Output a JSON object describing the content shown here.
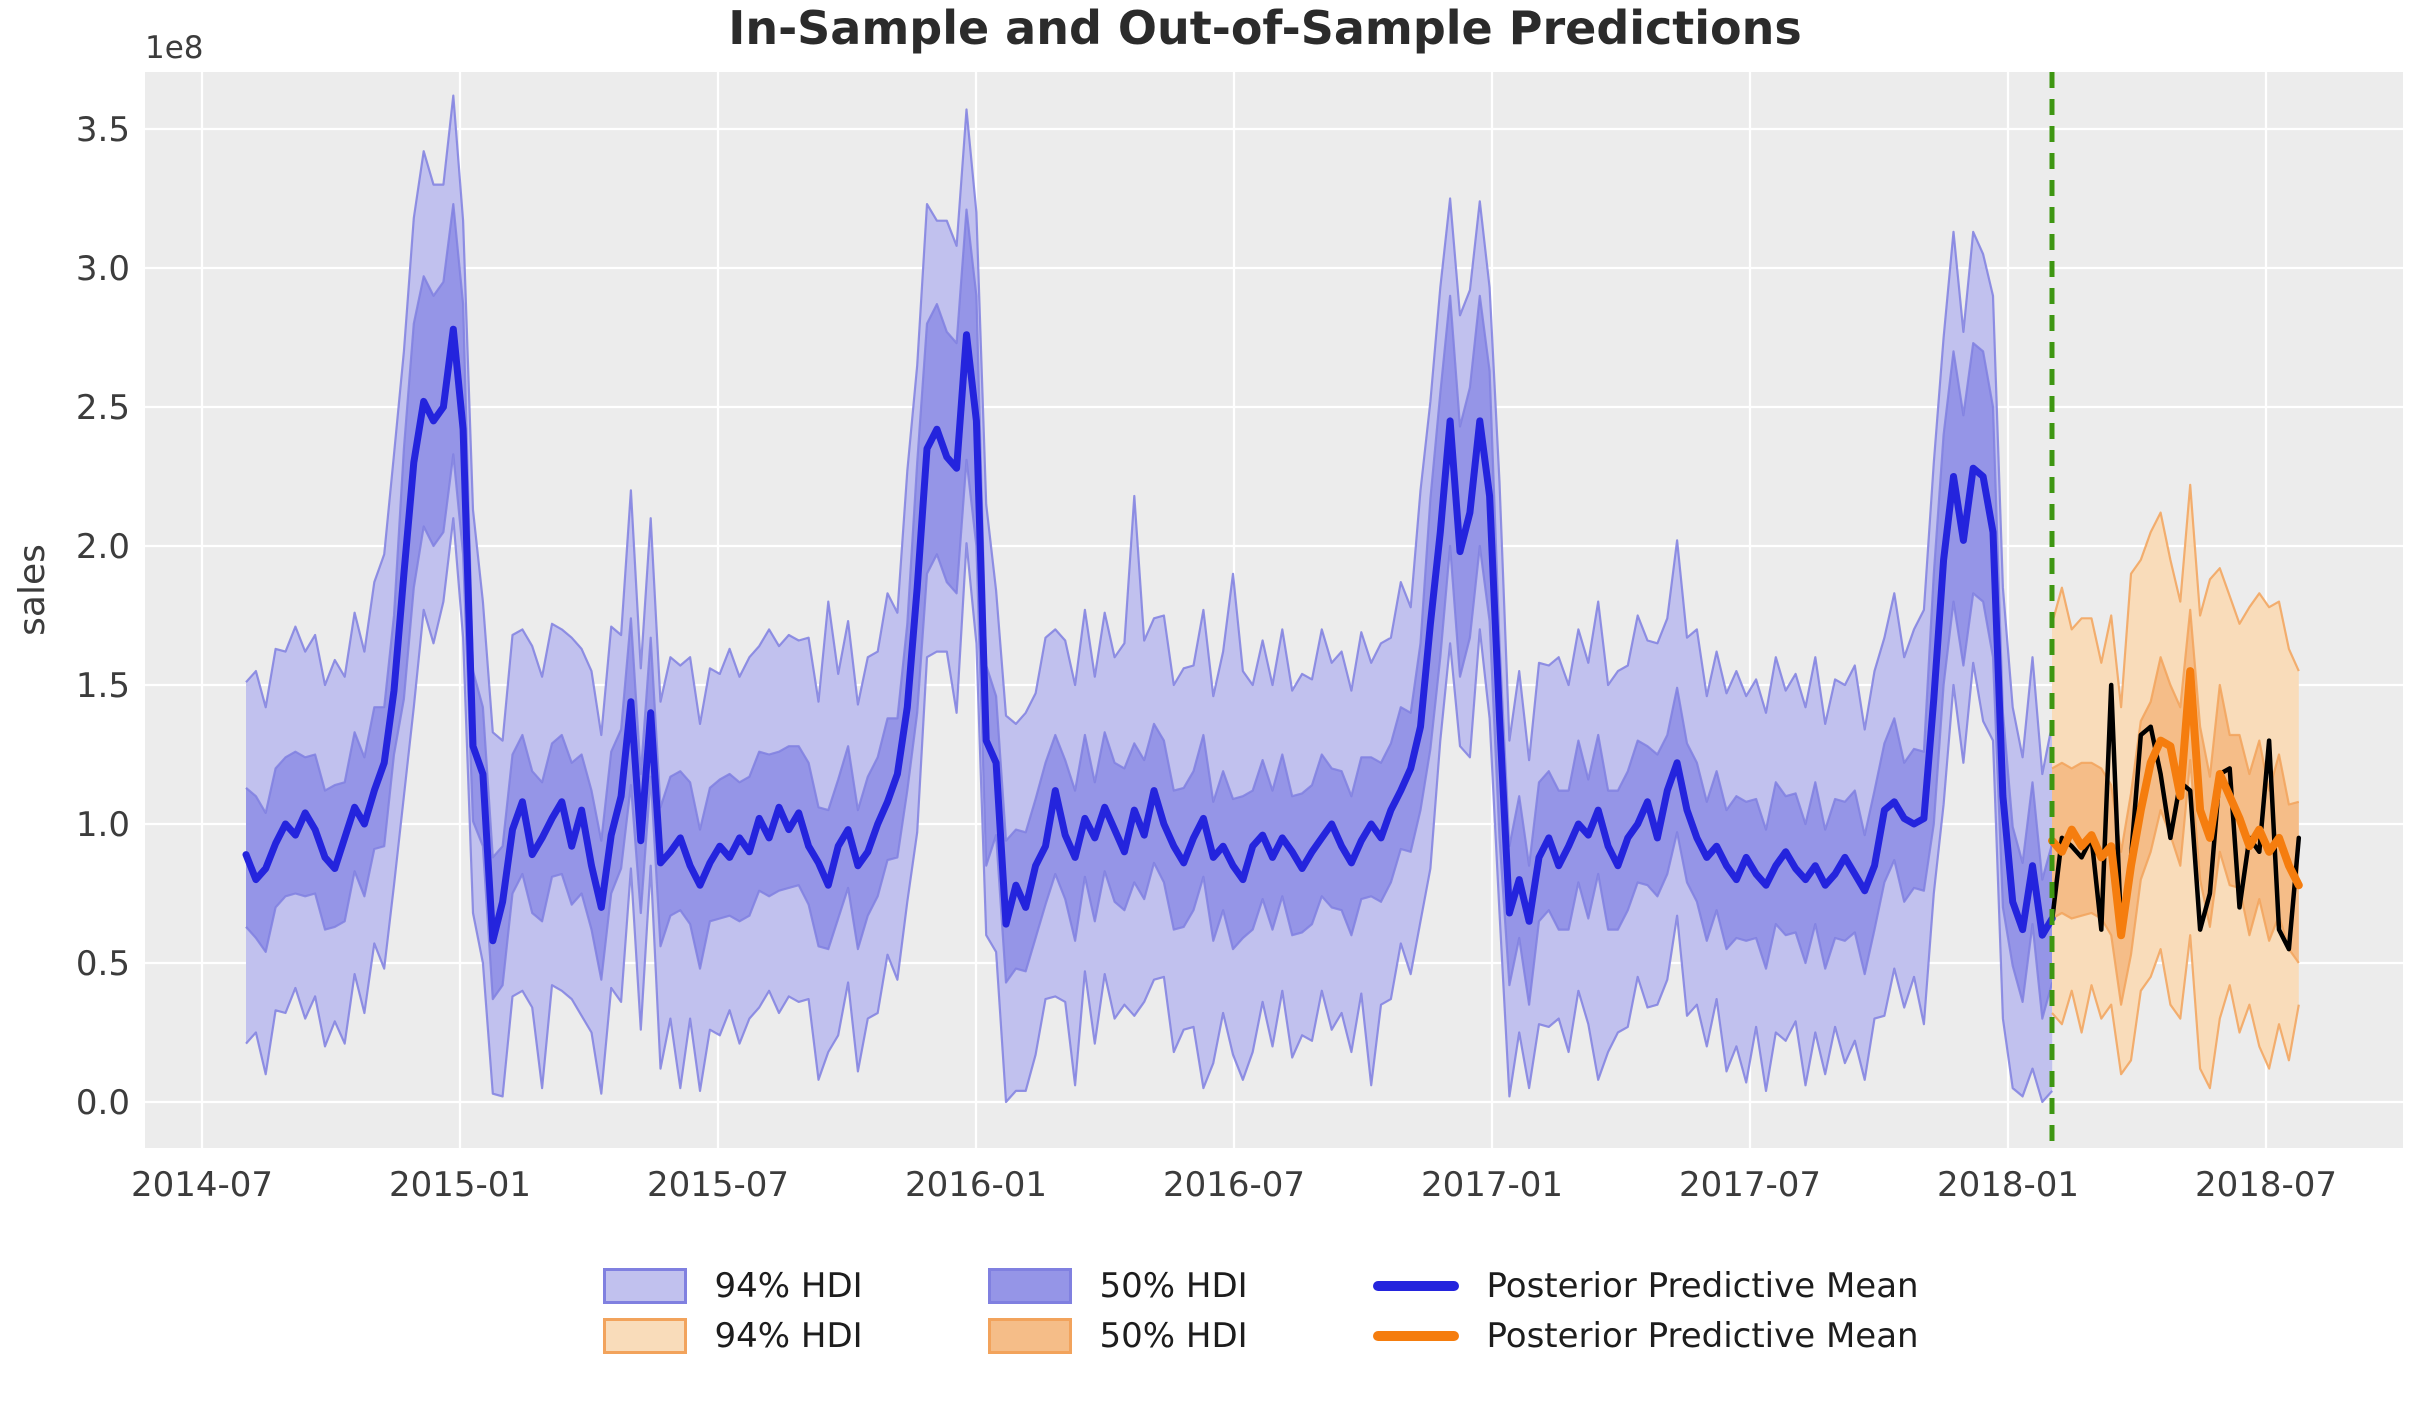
{
  "chart_data": {
    "type": "line",
    "title": "In-Sample and Out-of-Sample Predictions",
    "ylabel": "sales",
    "xlabel": "",
    "y_offset_label": "1e8",
    "unit": "1e8",
    "grid": true,
    "x_tick_labels": [
      "2014-07",
      "2015-01",
      "2015-07",
      "2016-01",
      "2016-07",
      "2017-01",
      "2017-07",
      "2018-01",
      "2018-07"
    ],
    "y_tick_labels": [
      "0.0",
      "0.5",
      "1.0",
      "1.5",
      "2.0",
      "2.5",
      "3.0",
      "3.5"
    ],
    "y_tick_values": [
      0,
      0.5,
      1.0,
      1.5,
      2.0,
      2.5,
      3.0,
      3.5
    ],
    "ylim": [
      -0.17,
      3.71
    ],
    "legend_position": "lower center below axes",
    "split_date": "2018-02-04",
    "series": {
      "in_sample": {
        "name": "Posterior Predictive Mean",
        "start_date": "2014-08-03",
        "freq_days": 7,
        "mean": [
          0.89,
          0.8,
          0.84,
          0.93,
          1.0,
          0.96,
          1.04,
          0.98,
          0.88,
          0.84,
          0.95,
          1.06,
          1.0,
          1.12,
          1.22,
          1.48,
          1.9,
          2.3,
          2.52,
          2.45,
          2.5,
          2.78,
          2.42,
          1.28,
          1.18,
          0.58,
          0.72,
          0.98,
          1.08,
          0.89,
          0.95,
          1.02,
          1.08,
          0.92,
          1.05,
          0.85,
          0.7,
          0.96,
          1.1,
          1.44,
          0.94,
          1.4,
          0.86,
          0.9,
          0.95,
          0.85,
          0.78,
          0.86,
          0.92,
          0.88,
          0.95,
          0.9,
          1.02,
          0.95,
          1.06,
          0.98,
          1.04,
          0.92,
          0.86,
          0.78,
          0.92,
          0.98,
          0.85,
          0.9,
          1.0,
          1.08,
          1.18,
          1.42,
          1.85,
          2.35,
          2.42,
          2.32,
          2.28,
          2.76,
          2.45,
          1.3,
          1.22,
          0.64,
          0.78,
          0.7,
          0.85,
          0.92,
          1.12,
          0.96,
          0.88,
          1.02,
          0.95,
          1.06,
          0.98,
          0.9,
          1.05,
          0.96,
          1.12,
          1.0,
          0.92,
          0.86,
          0.95,
          1.02,
          0.88,
          0.92,
          0.85,
          0.8,
          0.92,
          0.96,
          0.88,
          0.95,
          0.9,
          0.84,
          0.9,
          0.95,
          1.0,
          0.92,
          0.86,
          0.94,
          1.0,
          0.95,
          1.05,
          1.12,
          1.2,
          1.35,
          1.72,
          2.05,
          2.45,
          1.98,
          2.12,
          2.45,
          2.18,
          1.38,
          0.68,
          0.8,
          0.65,
          0.88,
          0.95,
          0.85,
          0.92,
          1.0,
          0.96,
          1.05,
          0.92,
          0.85,
          0.95,
          1.0,
          1.08,
          0.95,
          1.12,
          1.22,
          1.05,
          0.95,
          0.88,
          0.92,
          0.85,
          0.8,
          0.88,
          0.82,
          0.78,
          0.85,
          0.9,
          0.84,
          0.8,
          0.85,
          0.78,
          0.82,
          0.88,
          0.82,
          0.76,
          0.85,
          1.05,
          1.08,
          1.02,
          1.0,
          1.02,
          1.45,
          1.95,
          2.25,
          2.02,
          2.28,
          2.25,
          2.05,
          1.1,
          0.72,
          0.62,
          0.85,
          0.6,
          0.66
        ],
        "hdi94_hi": [
          1.51,
          1.55,
          1.42,
          1.63,
          1.62,
          1.71,
          1.62,
          1.68,
          1.5,
          1.59,
          1.53,
          1.76,
          1.62,
          1.87,
          1.97,
          2.33,
          2.7,
          3.18,
          3.42,
          3.3,
          3.3,
          3.62,
          3.17,
          2.13,
          1.8,
          1.33,
          1.3,
          1.68,
          1.7,
          1.64,
          1.53,
          1.72,
          1.7,
          1.67,
          1.63,
          1.55,
          1.32,
          1.71,
          1.68,
          2.2,
          1.56,
          2.1,
          1.44,
          1.6,
          1.57,
          1.6,
          1.36,
          1.56,
          1.54,
          1.63,
          1.53,
          1.6,
          1.64,
          1.7,
          1.64,
          1.68,
          1.66,
          1.67,
          1.44,
          1.8,
          1.54,
          1.73,
          1.43,
          1.6,
          1.62,
          1.83,
          1.76,
          2.27,
          2.65,
          3.23,
          3.17,
          3.17,
          3.08,
          3.57,
          3.2,
          2.15,
          1.84,
          1.39,
          1.36,
          1.4,
          1.47,
          1.67,
          1.7,
          1.66,
          1.5,
          1.77,
          1.53,
          1.76,
          1.6,
          1.65,
          2.18,
          1.66,
          1.74,
          1.75,
          1.5,
          1.56,
          1.57,
          1.77,
          1.46,
          1.62,
          1.9,
          1.55,
          1.5,
          1.66,
          1.5,
          1.7,
          1.48,
          1.54,
          1.52,
          1.7,
          1.58,
          1.62,
          1.48,
          1.69,
          1.58,
          1.65,
          1.67,
          1.87,
          1.78,
          2.2,
          2.52,
          2.93,
          3.25,
          2.83,
          2.92,
          3.24,
          2.93,
          2.23,
          1.3,
          1.55,
          1.23,
          1.58,
          1.57,
          1.6,
          1.5,
          1.7,
          1.58,
          1.8,
          1.5,
          1.55,
          1.57,
          1.75,
          1.66,
          1.65,
          1.74,
          2.02,
          1.67,
          1.7,
          1.46,
          1.62,
          1.47,
          1.55,
          1.46,
          1.52,
          1.4,
          1.6,
          1.48,
          1.54,
          1.42,
          1.6,
          1.36,
          1.52,
          1.5,
          1.57,
          1.34,
          1.55,
          1.67,
          1.83,
          1.6,
          1.7,
          1.77,
          2.3,
          2.75,
          3.13,
          2.77,
          3.13,
          3.05,
          2.9,
          1.85,
          1.42,
          1.24,
          1.6,
          1.18,
          1.36
        ],
        "hdi94_lo": [
          0.21,
          0.25,
          0.1,
          0.33,
          0.32,
          0.41,
          0.3,
          0.38,
          0.2,
          0.29,
          0.21,
          0.46,
          0.32,
          0.57,
          0.48,
          0.78,
          1.1,
          1.42,
          1.77,
          1.65,
          1.8,
          2.1,
          1.67,
          0.68,
          0.5,
          0.03,
          0.02,
          0.38,
          0.4,
          0.34,
          0.05,
          0.42,
          0.4,
          0.37,
          0.31,
          0.25,
          0.03,
          0.41,
          0.36,
          0.84,
          0.26,
          0.85,
          0.12,
          0.3,
          0.05,
          0.3,
          0.04,
          0.26,
          0.24,
          0.33,
          0.21,
          0.3,
          0.34,
          0.4,
          0.32,
          0.38,
          0.36,
          0.37,
          0.08,
          0.18,
          0.24,
          0.43,
          0.11,
          0.3,
          0.32,
          0.53,
          0.44,
          0.72,
          0.97,
          1.6,
          1.62,
          1.62,
          1.4,
          2.01,
          1.65,
          0.6,
          0.54,
          0.0,
          0.04,
          0.04,
          0.17,
          0.37,
          0.38,
          0.36,
          0.06,
          0.47,
          0.21,
          0.46,
          0.3,
          0.35,
          0.31,
          0.36,
          0.44,
          0.45,
          0.18,
          0.26,
          0.27,
          0.05,
          0.14,
          0.32,
          0.17,
          0.08,
          0.18,
          0.36,
          0.2,
          0.4,
          0.16,
          0.24,
          0.22,
          0.4,
          0.26,
          0.32,
          0.18,
          0.39,
          0.06,
          0.35,
          0.37,
          0.57,
          0.46,
          0.65,
          0.84,
          1.3,
          1.65,
          1.28,
          1.24,
          1.7,
          1.38,
          0.68,
          0.02,
          0.25,
          0.05,
          0.28,
          0.27,
          0.3,
          0.18,
          0.4,
          0.28,
          0.08,
          0.18,
          0.25,
          0.27,
          0.45,
          0.34,
          0.35,
          0.44,
          0.67,
          0.31,
          0.35,
          0.2,
          0.37,
          0.11,
          0.2,
          0.07,
          0.27,
          0.04,
          0.25,
          0.22,
          0.29,
          0.06,
          0.25,
          0.1,
          0.27,
          0.14,
          0.22,
          0.08,
          0.3,
          0.31,
          0.48,
          0.34,
          0.45,
          0.28,
          0.75,
          1.07,
          1.5,
          1.22,
          1.58,
          1.37,
          1.3,
          0.3,
          0.05,
          0.02,
          0.12,
          0.0,
          0.04
        ],
        "hdi50_hi": [
          1.13,
          1.1,
          1.04,
          1.2,
          1.24,
          1.26,
          1.24,
          1.25,
          1.12,
          1.14,
          1.15,
          1.33,
          1.24,
          1.42,
          1.42,
          1.75,
          2.35,
          2.8,
          2.97,
          2.9,
          2.95,
          3.23,
          2.87,
          1.55,
          1.42,
          0.88,
          0.92,
          1.25,
          1.32,
          1.19,
          1.15,
          1.29,
          1.32,
          1.22,
          1.25,
          1.12,
          0.94,
          1.26,
          1.34,
          1.74,
          1.18,
          1.67,
          1.06,
          1.17,
          1.19,
          1.15,
          0.98,
          1.13,
          1.16,
          1.18,
          1.15,
          1.17,
          1.26,
          1.25,
          1.26,
          1.28,
          1.28,
          1.22,
          1.06,
          1.05,
          1.16,
          1.28,
          1.05,
          1.17,
          1.24,
          1.38,
          1.38,
          1.72,
          2.3,
          2.8,
          2.87,
          2.77,
          2.73,
          3.21,
          2.9,
          1.57,
          1.46,
          0.94,
          0.98,
          0.97,
          1.09,
          1.22,
          1.32,
          1.23,
          1.12,
          1.32,
          1.15,
          1.33,
          1.22,
          1.2,
          1.29,
          1.23,
          1.36,
          1.3,
          1.12,
          1.13,
          1.19,
          1.32,
          1.08,
          1.19,
          1.09,
          1.1,
          1.12,
          1.23,
          1.12,
          1.25,
          1.1,
          1.11,
          1.14,
          1.25,
          1.2,
          1.19,
          1.1,
          1.24,
          1.24,
          1.22,
          1.29,
          1.42,
          1.4,
          1.65,
          2.17,
          2.55,
          2.9,
          2.43,
          2.57,
          2.9,
          2.63,
          1.65,
          0.92,
          1.1,
          0.85,
          1.15,
          1.19,
          1.12,
          1.12,
          1.3,
          1.16,
          1.32,
          1.12,
          1.12,
          1.19,
          1.3,
          1.28,
          1.25,
          1.32,
          1.49,
          1.29,
          1.22,
          1.08,
          1.19,
          1.05,
          1.1,
          1.08,
          1.09,
          0.98,
          1.15,
          1.1,
          1.11,
          1.0,
          1.15,
          0.98,
          1.09,
          1.08,
          1.12,
          0.96,
          1.12,
          1.29,
          1.38,
          1.22,
          1.27,
          1.26,
          1.9,
          2.4,
          2.7,
          2.47,
          2.73,
          2.7,
          2.5,
          1.4,
          0.99,
          0.86,
          1.15,
          0.8,
          0.93
        ],
        "hdi50_lo": [
          0.63,
          0.59,
          0.54,
          0.7,
          0.74,
          0.75,
          0.74,
          0.75,
          0.62,
          0.63,
          0.65,
          0.83,
          0.74,
          0.91,
          0.92,
          1.25,
          1.45,
          1.85,
          2.07,
          2.0,
          2.05,
          2.33,
          1.97,
          1.01,
          0.92,
          0.37,
          0.42,
          0.75,
          0.82,
          0.68,
          0.65,
          0.81,
          0.82,
          0.71,
          0.75,
          0.62,
          0.44,
          0.75,
          0.84,
          1.14,
          0.68,
          1.17,
          0.56,
          0.67,
          0.69,
          0.64,
          0.48,
          0.65,
          0.66,
          0.67,
          0.65,
          0.67,
          0.76,
          0.74,
          0.76,
          0.77,
          0.78,
          0.71,
          0.56,
          0.55,
          0.66,
          0.77,
          0.55,
          0.67,
          0.74,
          0.87,
          0.88,
          1.12,
          1.4,
          1.9,
          1.97,
          1.87,
          1.83,
          2.31,
          2.0,
          0.85,
          0.96,
          0.43,
          0.48,
          0.47,
          0.59,
          0.71,
          0.82,
          0.73,
          0.58,
          0.81,
          0.65,
          0.83,
          0.72,
          0.69,
          0.79,
          0.73,
          0.86,
          0.79,
          0.62,
          0.63,
          0.69,
          0.81,
          0.58,
          0.69,
          0.55,
          0.59,
          0.62,
          0.73,
          0.62,
          0.74,
          0.6,
          0.61,
          0.64,
          0.74,
          0.7,
          0.69,
          0.6,
          0.73,
          0.74,
          0.72,
          0.79,
          0.91,
          0.9,
          1.05,
          1.27,
          1.6,
          2.0,
          1.53,
          1.67,
          2.0,
          1.73,
          0.95,
          0.42,
          0.59,
          0.35,
          0.65,
          0.69,
          0.62,
          0.62,
          0.79,
          0.66,
          0.82,
          0.62,
          0.62,
          0.69,
          0.79,
          0.78,
          0.74,
          0.82,
          0.97,
          0.79,
          0.72,
          0.58,
          0.69,
          0.55,
          0.59,
          0.58,
          0.59,
          0.48,
          0.64,
          0.6,
          0.61,
          0.5,
          0.64,
          0.48,
          0.59,
          0.58,
          0.61,
          0.46,
          0.62,
          0.79,
          0.87,
          0.72,
          0.77,
          0.76,
          1.0,
          1.5,
          1.8,
          1.57,
          1.83,
          1.8,
          1.6,
          0.7,
          0.49,
          0.36,
          0.64,
          0.3,
          0.43
        ]
      },
      "out_of_sample": {
        "name": "Posterior Predictive Mean",
        "start_date": "2018-02-04",
        "freq_days": 7,
        "mean": [
          0.94,
          0.9,
          0.98,
          0.92,
          0.96,
          0.88,
          0.92,
          0.6,
          0.85,
          1.05,
          1.22,
          1.3,
          1.28,
          1.1,
          1.55,
          1.05,
          0.95,
          1.18,
          1.1,
          1.02,
          0.92,
          0.98,
          0.9,
          0.95,
          0.85,
          0.78
        ],
        "hdi94_hi": [
          1.72,
          1.85,
          1.7,
          1.74,
          1.74,
          1.58,
          1.75,
          1.42,
          1.9,
          1.95,
          2.05,
          2.12,
          1.95,
          1.8,
          2.22,
          1.75,
          1.88,
          1.92,
          1.82,
          1.72,
          1.78,
          1.83,
          1.78,
          1.8,
          1.63,
          1.55
        ],
        "hdi94_lo": [
          0.32,
          0.28,
          0.4,
          0.25,
          0.42,
          0.3,
          0.35,
          0.1,
          0.15,
          0.4,
          0.45,
          0.55,
          0.35,
          0.3,
          0.6,
          0.12,
          0.05,
          0.3,
          0.42,
          0.25,
          0.35,
          0.2,
          0.12,
          0.28,
          0.15,
          0.35
        ],
        "hdi50_hi": [
          1.2,
          1.22,
          1.2,
          1.22,
          1.22,
          1.2,
          1.14,
          0.9,
          1.11,
          1.37,
          1.44,
          1.6,
          1.5,
          1.42,
          1.77,
          1.35,
          1.17,
          1.5,
          1.32,
          1.32,
          1.18,
          1.3,
          1.12,
          1.25,
          1.07,
          1.08
        ],
        "hdi50_lo": [
          0.66,
          0.68,
          0.66,
          0.67,
          0.68,
          0.66,
          0.6,
          0.35,
          0.53,
          0.8,
          0.9,
          1.05,
          0.96,
          0.85,
          1.23,
          0.8,
          0.63,
          0.9,
          0.78,
          0.77,
          0.6,
          0.73,
          0.58,
          0.67,
          0.55,
          0.5
        ]
      },
      "observed": {
        "name": "observed",
        "start_date": "2018-02-04",
        "freq_days": 7,
        "values": [
          0.65,
          0.95,
          0.92,
          0.88,
          0.95,
          0.62,
          1.5,
          0.62,
          0.88,
          1.32,
          1.35,
          1.18,
          0.95,
          1.15,
          1.12,
          0.62,
          0.75,
          1.18,
          1.2,
          0.7,
          0.95,
          0.9,
          1.3,
          0.62,
          0.55,
          0.95
        ]
      }
    }
  },
  "colors": {
    "figure_bg": "#ffffff",
    "plot_bg": "#ececec",
    "grid": "#ffffff",
    "blue94": "#c1c1ee",
    "blue50": "#9595e7",
    "blue_edge": "#8080e0",
    "blue_mean": "#2424dd",
    "orange94": "#f9dcba",
    "orange50": "#f5bd88",
    "orange_edge": "#f2a35c",
    "orange_mean": "#f57d0e",
    "observed": "#000000",
    "split_line": "#3e9612",
    "title_text": "#2b2b2b",
    "tick_text": "#3c3c3c"
  },
  "legend": {
    "items": [
      {
        "label": "94% HDI",
        "swatch": "patch",
        "color_key": "blue94",
        "edge_key": "blue_edge"
      },
      {
        "label": "50% HDI",
        "swatch": "patch",
        "color_key": "blue50",
        "edge_key": "blue_edge"
      },
      {
        "label": "Posterior Predictive Mean",
        "swatch": "line",
        "color_key": "blue_mean"
      },
      {
        "label": "94% HDI",
        "swatch": "patch",
        "color_key": "orange94",
        "edge_key": "orange_edge"
      },
      {
        "label": "50% HDI",
        "swatch": "patch",
        "color_key": "orange50",
        "edge_key": "orange_edge"
      },
      {
        "label": "Posterior Predictive Mean",
        "swatch": "line",
        "color_key": "orange_mean"
      }
    ]
  }
}
